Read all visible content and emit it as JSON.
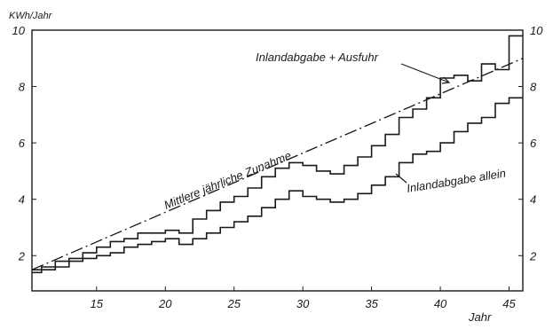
{
  "chart_data": {
    "type": "line",
    "title": "",
    "xlabel": "Jahr",
    "ylabel": "KWh/Jahr",
    "x_ticks": [
      15,
      20,
      25,
      30,
      35,
      40,
      45
    ],
    "y_ticks": [
      2,
      4,
      6,
      8,
      10
    ],
    "y_ticks_right": [
      2,
      4,
      6,
      8,
      10
    ],
    "xlim": [
      10.3,
      46
    ],
    "ylim": [
      0.75,
      10
    ],
    "step": true,
    "series": [
      {
        "name": "Inlandabgabe + Ausfuhr",
        "x": [
          10,
          11,
          12,
          13,
          14,
          15,
          16,
          17,
          18,
          19,
          20,
          21,
          22,
          23,
          24,
          25,
          26,
          27,
          28,
          29,
          30,
          31,
          32,
          33,
          34,
          35,
          36,
          37,
          38,
          39,
          40,
          41,
          42,
          43,
          44,
          45
        ],
        "values": [
          1.5,
          1.6,
          1.8,
          1.9,
          2.1,
          2.3,
          2.5,
          2.6,
          2.8,
          2.8,
          2.9,
          2.8,
          3.3,
          3.6,
          3.9,
          4.1,
          4.4,
          4.8,
          5.1,
          5.3,
          5.2,
          5.0,
          4.9,
          5.2,
          5.5,
          5.9,
          6.3,
          6.9,
          7.2,
          7.6,
          8.3,
          8.4,
          8.2,
          8.8,
          8.6,
          9.8
        ]
      },
      {
        "name": "Inlandabgabe allein",
        "x": [
          10,
          11,
          12,
          13,
          14,
          15,
          16,
          17,
          18,
          19,
          20,
          21,
          22,
          23,
          24,
          25,
          26,
          27,
          28,
          29,
          30,
          31,
          32,
          33,
          34,
          35,
          36,
          37,
          38,
          39,
          40,
          41,
          42,
          43,
          44,
          45
        ],
        "values": [
          1.4,
          1.5,
          1.6,
          1.8,
          1.9,
          2.0,
          2.1,
          2.3,
          2.4,
          2.5,
          2.6,
          2.4,
          2.6,
          2.8,
          3.0,
          3.2,
          3.4,
          3.7,
          4.0,
          4.3,
          4.1,
          4.0,
          3.9,
          4.0,
          4.2,
          4.5,
          4.8,
          5.3,
          5.6,
          5.7,
          6.0,
          6.4,
          6.7,
          6.9,
          7.4,
          7.6
        ]
      }
    ],
    "trend": {
      "label": "Mittlere jährliche Zunahme",
      "x": [
        10.3,
        46
      ],
      "y": [
        1.5,
        9.0
      ]
    },
    "annotations": {
      "series_a": "Inlandabgabe + Ausfuhr",
      "series_b": "Inlandabgabe allein",
      "trend": "Mittlere jährliche Zunahme"
    },
    "grid": false,
    "legend": "none"
  }
}
